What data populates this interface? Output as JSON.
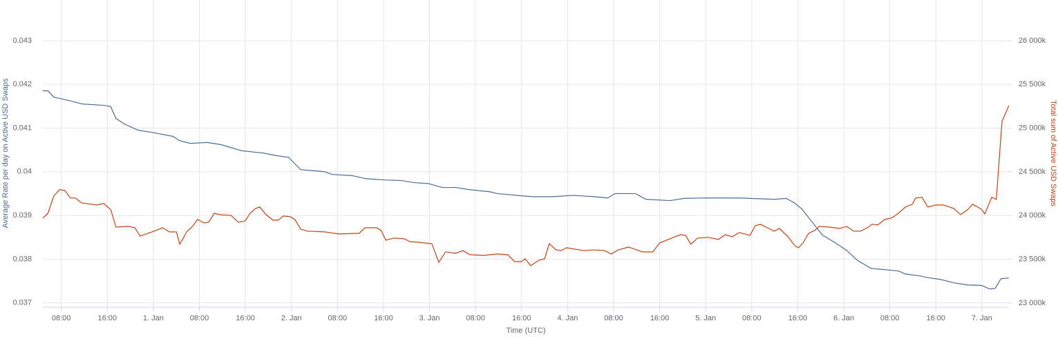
{
  "chart_data": {
    "type": "line",
    "xlabel": "Time (UTC)",
    "ylabel": "Average Rate per day on Active USD Swaps",
    "y2label": "Total sum of Active USD Swaps",
    "xlim": [
      -19.2,
      148.7
    ],
    "xticks": [
      {
        "value": -16,
        "label": "08:00"
      },
      {
        "value": -8,
        "label": "16:00"
      },
      {
        "value": 0,
        "label": "1. Jan"
      },
      {
        "value": 8,
        "label": "08:00"
      },
      {
        "value": 16,
        "label": "16:00"
      },
      {
        "value": 24,
        "label": "2. Jan"
      },
      {
        "value": 32,
        "label": "08:00"
      },
      {
        "value": 40,
        "label": "16:00"
      },
      {
        "value": 48,
        "label": "3. Jan"
      },
      {
        "value": 56,
        "label": "08:00"
      },
      {
        "value": 64,
        "label": "16:00"
      },
      {
        "value": 72,
        "label": "4. Jan"
      },
      {
        "value": 80,
        "label": "08:00"
      },
      {
        "value": 88,
        "label": "16:00"
      },
      {
        "value": 96,
        "label": "5. Jan"
      },
      {
        "value": 104,
        "label": "08:00"
      },
      {
        "value": 112,
        "label": "16:00"
      },
      {
        "value": 120,
        "label": "6. Jan"
      },
      {
        "value": 128,
        "label": "08:00"
      },
      {
        "value": 136,
        "label": "16:00"
      },
      {
        "value": 144,
        "label": "7. Jan"
      }
    ],
    "ylim": [
      0.0369,
      0.04393
    ],
    "yticks": [
      0.037,
      0.038,
      0.039,
      0.04,
      0.041,
      0.042,
      0.043
    ],
    "y2lim": [
      22952,
      26466
    ],
    "y2ticks": [
      {
        "value": 23000,
        "label": "23 000k"
      },
      {
        "value": 23500,
        "label": "23 500k"
      },
      {
        "value": 24000,
        "label": "24 000k"
      },
      {
        "value": 24500,
        "label": "24 500k"
      },
      {
        "value": 25000,
        "label": "25 000k"
      },
      {
        "value": 25500,
        "label": "25 500k"
      },
      {
        "value": 26000,
        "label": "26 000k"
      }
    ],
    "grid": true,
    "series": [
      {
        "name": "Average Rate per day on Active USD Swaps",
        "color": "#4a6a99",
        "axis": "y",
        "x": [
          -19.2,
          -18.3,
          -17.3,
          -14.7,
          -12.3,
          -8.6,
          -7.4,
          -6.5,
          -5.0,
          -2.6,
          -0.2,
          3.4,
          4.6,
          6.4,
          9.4,
          11.8,
          15.4,
          19.0,
          21.4,
          23.5,
          25.6,
          29.8,
          31.0,
          34.6,
          37.0,
          40.6,
          43.0,
          45.4,
          47.8,
          50.2,
          52.6,
          55.0,
          58.6,
          59.8,
          65.8,
          69.4,
          73.0,
          76.6,
          79.0,
          80.2,
          83.8,
          85.6,
          89.8,
          92.2,
          95.8,
          101.8,
          103.7,
          107.9,
          110.0,
          111.5,
          112.7,
          114.5,
          116.3,
          118.7,
          120.5,
          122.3,
          124.7,
          129.5,
          130.7,
          133.1,
          134.9,
          136.7,
          139.1,
          141.5,
          143.9,
          145.3,
          146.3,
          147.3,
          148.7
        ],
        "values": [
          0.04185,
          0.04185,
          0.04171,
          0.04163,
          0.04155,
          0.04152,
          0.04149,
          0.04122,
          0.04109,
          0.04095,
          0.0409,
          0.04081,
          0.04071,
          0.04065,
          0.04067,
          0.04062,
          0.04048,
          0.04043,
          0.04037,
          0.04033,
          0.04005,
          0.04,
          0.03994,
          0.03991,
          0.03984,
          0.03981,
          0.0398,
          0.03975,
          0.03973,
          0.03964,
          0.03964,
          0.03959,
          0.03954,
          0.0395,
          0.03943,
          0.03943,
          0.03946,
          0.03943,
          0.0394,
          0.0395,
          0.0395,
          0.03937,
          0.03934,
          0.03939,
          0.0394,
          0.0394,
          0.03939,
          0.03937,
          0.03939,
          0.03928,
          0.03915,
          0.03885,
          0.03855,
          0.03836,
          0.0382,
          0.03798,
          0.03779,
          0.03773,
          0.03766,
          0.03762,
          0.03757,
          0.03754,
          0.03746,
          0.03741,
          0.0374,
          0.03732,
          0.03733,
          0.03755,
          0.03757
        ]
      },
      {
        "name": "Total sum of Active USD Swaps",
        "color": "#c8400f",
        "axis": "y2",
        "x": [
          -19.2,
          -18.3,
          -17.3,
          -16.3,
          -15.4,
          -14.4,
          -13.5,
          -12.5,
          -9.8,
          -8.6,
          -7.4,
          -6.5,
          -4.4,
          -3.2,
          -2.3,
          -0.2,
          1.6,
          2.8,
          4.0,
          4.6,
          5.8,
          6.7,
          7.7,
          8.8,
          9.6,
          10.6,
          11.5,
          13.5,
          14.8,
          16.0,
          16.8,
          17.8,
          18.5,
          19.6,
          20.8,
          21.7,
          22.6,
          23.8,
          24.6,
          25.6,
          26.8,
          29.8,
          32.2,
          35.8,
          36.8,
          38.8,
          39.6,
          40.4,
          41.8,
          43.6,
          44.6,
          48.4,
          49.6,
          50.8,
          52.6,
          53.8,
          55.0,
          57.4,
          59.8,
          61.6,
          62.8,
          64.0,
          64.6,
          65.6,
          67.0,
          68.0,
          68.8,
          70.0,
          70.9,
          71.8,
          74.8,
          76.6,
          78.4,
          79.6,
          80.8,
          82.6,
          85.0,
          86.8,
          88.0,
          89.8,
          91.6,
          92.5,
          93.4,
          94.6,
          96.4,
          98.2,
          99.4,
          100.6,
          101.8,
          103.7,
          104.6,
          105.5,
          106.7,
          107.9,
          108.8,
          110.3,
          111.5,
          112.1,
          112.9,
          113.9,
          115.1,
          115.7,
          117.5,
          119.3,
          120.5,
          121.7,
          122.9,
          124.1,
          124.9,
          125.9,
          127.1,
          128.3,
          129.5,
          130.7,
          131.9,
          132.5,
          133.6,
          134.6,
          136.0,
          137.3,
          139.1,
          140.3,
          141.5,
          142.4,
          143.9,
          144.5,
          145.7,
          146.5,
          147.5,
          148.7
        ],
        "values": [
          23972,
          24027,
          24225,
          24296,
          24288,
          24201,
          24201,
          24146,
          24122,
          24138,
          24067,
          23869,
          23877,
          23861,
          23766,
          23814,
          23861,
          23814,
          23814,
          23672,
          23814,
          23869,
          23956,
          23916,
          23924,
          24027,
          24011,
          24003,
          23924,
          23940,
          24027,
          24082,
          24098,
          24011,
          23948,
          23948,
          23995,
          23988,
          23956,
          23845,
          23822,
          23814,
          23790,
          23798,
          23861,
          23861,
          23830,
          23719,
          23743,
          23735,
          23703,
          23679,
          23466,
          23585,
          23569,
          23600,
          23553,
          23545,
          23561,
          23553,
          23474,
          23474,
          23506,
          23427,
          23490,
          23506,
          23679,
          23608,
          23600,
          23632,
          23600,
          23608,
          23600,
          23561,
          23608,
          23640,
          23585,
          23585,
          23687,
          23735,
          23782,
          23774,
          23672,
          23743,
          23751,
          23727,
          23782,
          23758,
          23806,
          23774,
          23885,
          23901,
          23861,
          23822,
          23853,
          23758,
          23656,
          23632,
          23687,
          23798,
          23837,
          23877,
          23869,
          23853,
          23877,
          23822,
          23822,
          23861,
          23901,
          23893,
          23956,
          23972,
          24027,
          24098,
          24130,
          24201,
          24209,
          24098,
          24122,
          24122,
          24082,
          24011,
          24067,
          24130,
          24074,
          24019,
          24209,
          24185,
          25078,
          25259
        ]
      }
    ]
  }
}
